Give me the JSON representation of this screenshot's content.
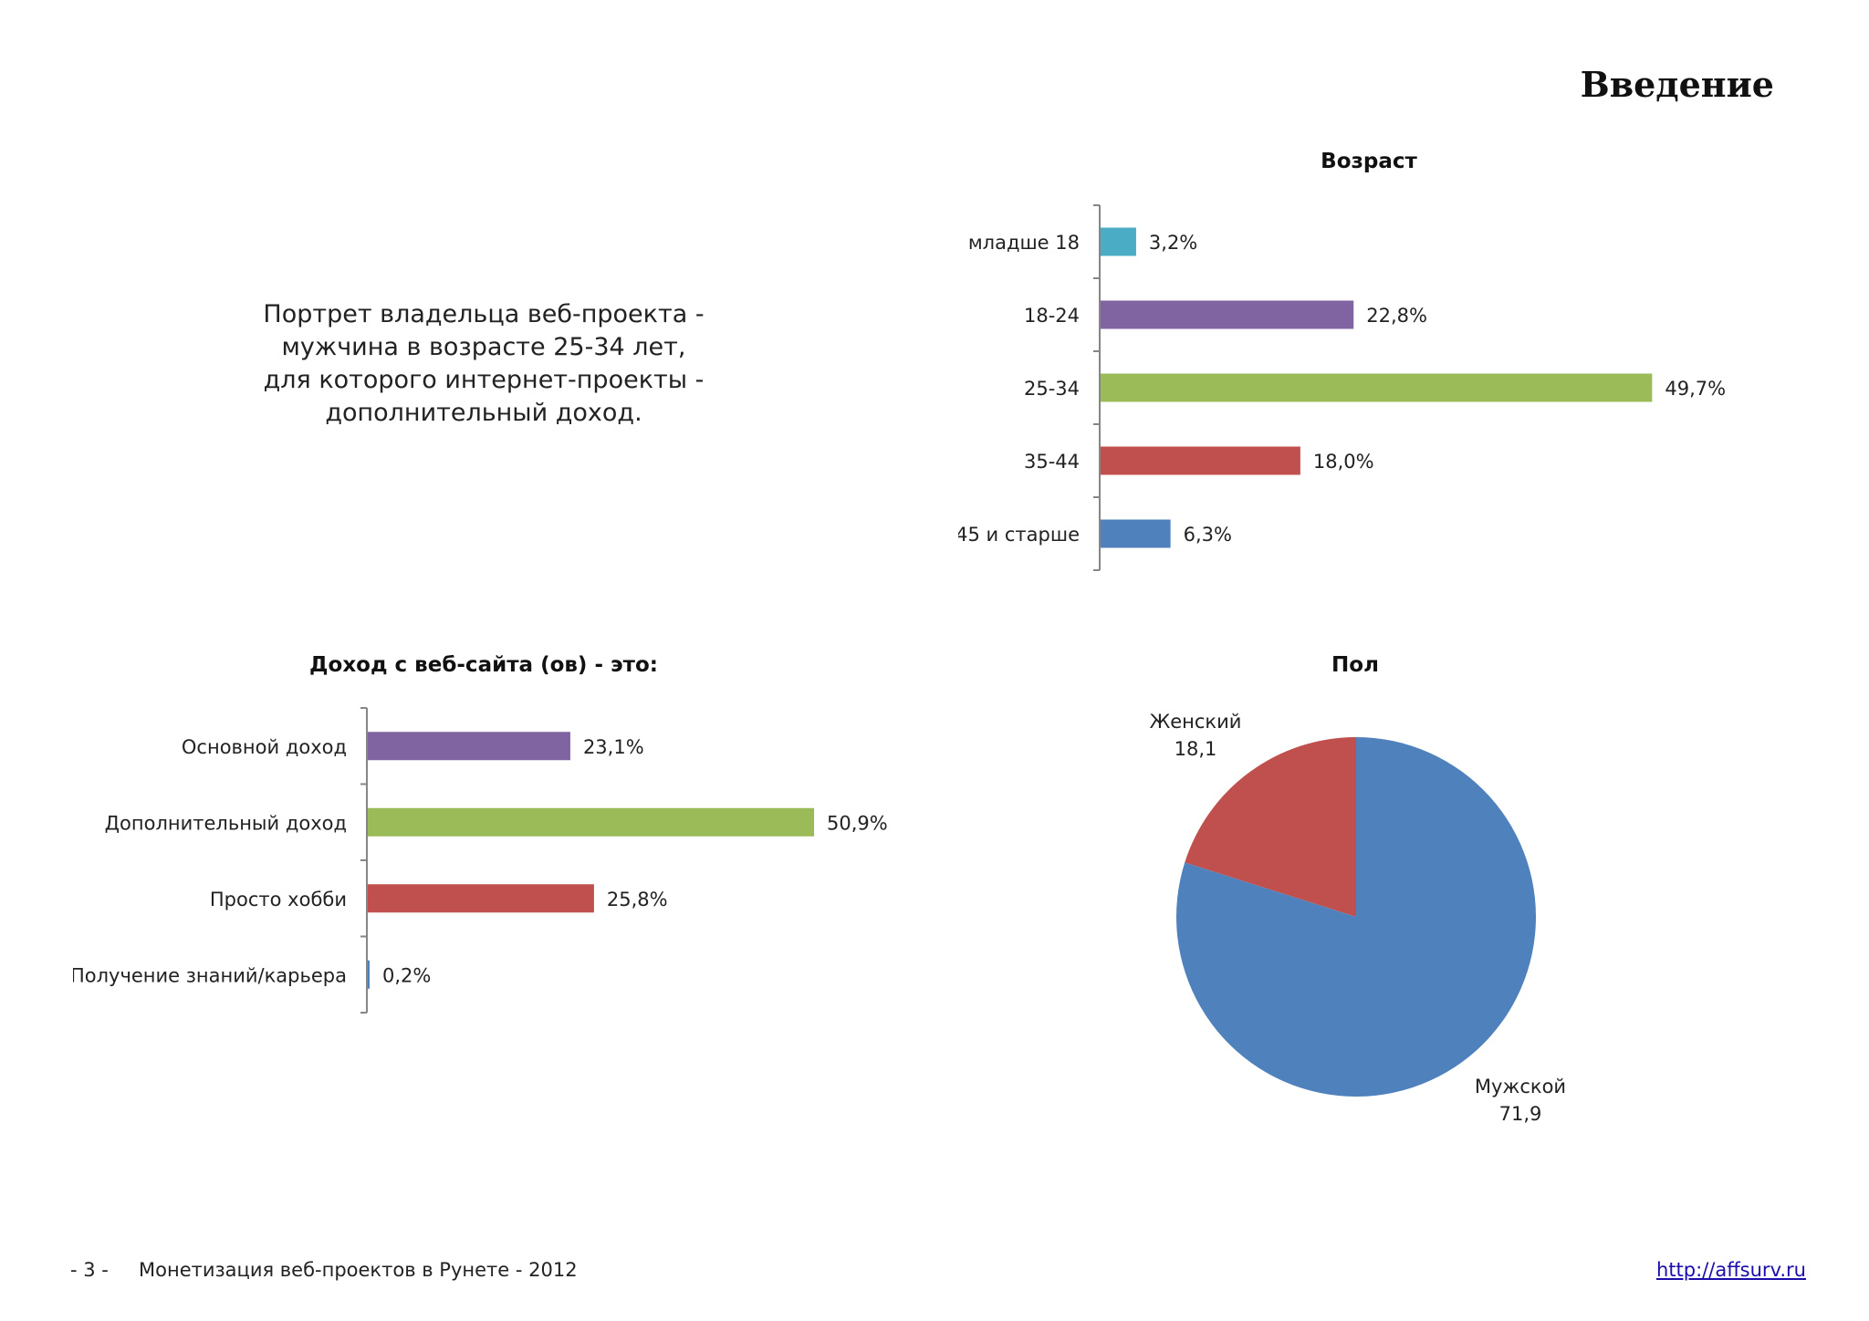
{
  "page": {
    "title": "Введение",
    "summary_lines": [
      "Портрет владельца веб-проекта -",
      "мужчина в возрасте 25-34 лет,",
      "для которого интернет-проекты -",
      "дополнительный доход."
    ]
  },
  "footer": {
    "page_number": "- 3 -",
    "document_title": "Монетизация веб-проектов в Рунете - 2012",
    "link": "http://affsurv.ru"
  },
  "chart_data": [
    {
      "id": "age",
      "type": "bar",
      "orientation": "horizontal",
      "title": "Возраст",
      "categories": [
        "младше 18",
        "18-24",
        "25-34",
        "35-44",
        "45 и старше"
      ],
      "values": [
        3.2,
        22.8,
        49.7,
        18.0,
        6.3
      ],
      "labels": [
        "3,2%",
        "22,8%",
        "49,7%",
        "18,0%",
        "6,3%"
      ],
      "colors": [
        "#4bacc6",
        "#8064a2",
        "#9bbb59",
        "#c0504d",
        "#4f81bd"
      ],
      "xlim": [
        0,
        50
      ],
      "grid": false
    },
    {
      "id": "income",
      "type": "bar",
      "orientation": "horizontal",
      "title": "Доход с веб-сайта (ов) - это:",
      "categories": [
        "Основной доход",
        "Дополнительный доход",
        "Просто хобби",
        "Получение знаний/карьера"
      ],
      "values": [
        23.1,
        50.9,
        25.8,
        0.2
      ],
      "labels": [
        "23,1%",
        "50,9%",
        "25,8%",
        "0,2%"
      ],
      "colors": [
        "#8064a2",
        "#9bbb59",
        "#c0504d",
        "#4f81bd"
      ],
      "xlim": [
        0,
        51
      ],
      "grid": false
    },
    {
      "id": "gender",
      "type": "pie",
      "title": "Пол",
      "categories": [
        "Женский",
        "Мужской"
      ],
      "values": [
        18.1,
        71.9
      ],
      "labels": [
        "18,1",
        "71,9"
      ],
      "colors": [
        "#c0504d",
        "#4f81bd"
      ]
    }
  ]
}
